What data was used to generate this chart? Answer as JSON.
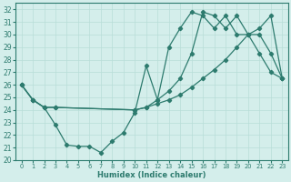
{
  "xlabel": "Humidex (Indice chaleur)",
  "xlim": [
    -0.5,
    23.5
  ],
  "ylim": [
    20,
    32.5
  ],
  "yticks": [
    20,
    21,
    22,
    23,
    24,
    25,
    26,
    27,
    28,
    29,
    30,
    31,
    32
  ],
  "xticks": [
    0,
    1,
    2,
    3,
    4,
    5,
    6,
    7,
    8,
    9,
    10,
    11,
    12,
    13,
    14,
    15,
    16,
    17,
    18,
    19,
    20,
    21,
    22,
    23
  ],
  "line_color": "#2d7b6e",
  "bg_color": "#d4eeeb",
  "grid_color": "#b8ddd8",
  "line1_x": [
    0,
    1,
    2,
    3,
    4,
    5,
    6,
    7,
    8,
    9,
    10,
    11,
    12,
    13,
    14,
    15,
    16,
    17,
    18,
    19,
    20,
    21,
    22,
    23
  ],
  "line1_y": [
    26.0,
    24.8,
    24.2,
    22.8,
    21.2,
    21.1,
    21.1,
    20.6,
    21.5,
    22.2,
    23.8,
    27.5,
    24.8,
    29.0,
    30.5,
    31.8,
    31.5,
    30.5,
    31.5,
    30.0,
    30.0,
    28.5,
    27.0,
    26.5
  ],
  "line2_x": [
    0,
    1,
    2,
    3,
    10,
    11,
    12,
    13,
    14,
    15,
    16,
    17,
    18,
    19,
    20,
    21,
    22,
    23
  ],
  "line2_y": [
    26.0,
    24.8,
    24.2,
    24.2,
    24.0,
    24.2,
    24.5,
    24.8,
    25.2,
    25.8,
    26.5,
    27.2,
    28.0,
    29.0,
    30.0,
    30.5,
    31.5,
    26.5
  ],
  "line3_x": [
    0,
    1,
    2,
    3,
    10,
    11,
    12,
    13,
    14,
    15,
    16,
    17,
    18,
    19,
    20,
    21,
    22,
    23
  ],
  "line3_y": [
    26.0,
    24.8,
    24.2,
    24.2,
    24.0,
    24.2,
    24.8,
    25.5,
    26.5,
    28.5,
    31.8,
    31.5,
    30.5,
    31.5,
    30.0,
    30.0,
    28.5,
    26.5
  ]
}
